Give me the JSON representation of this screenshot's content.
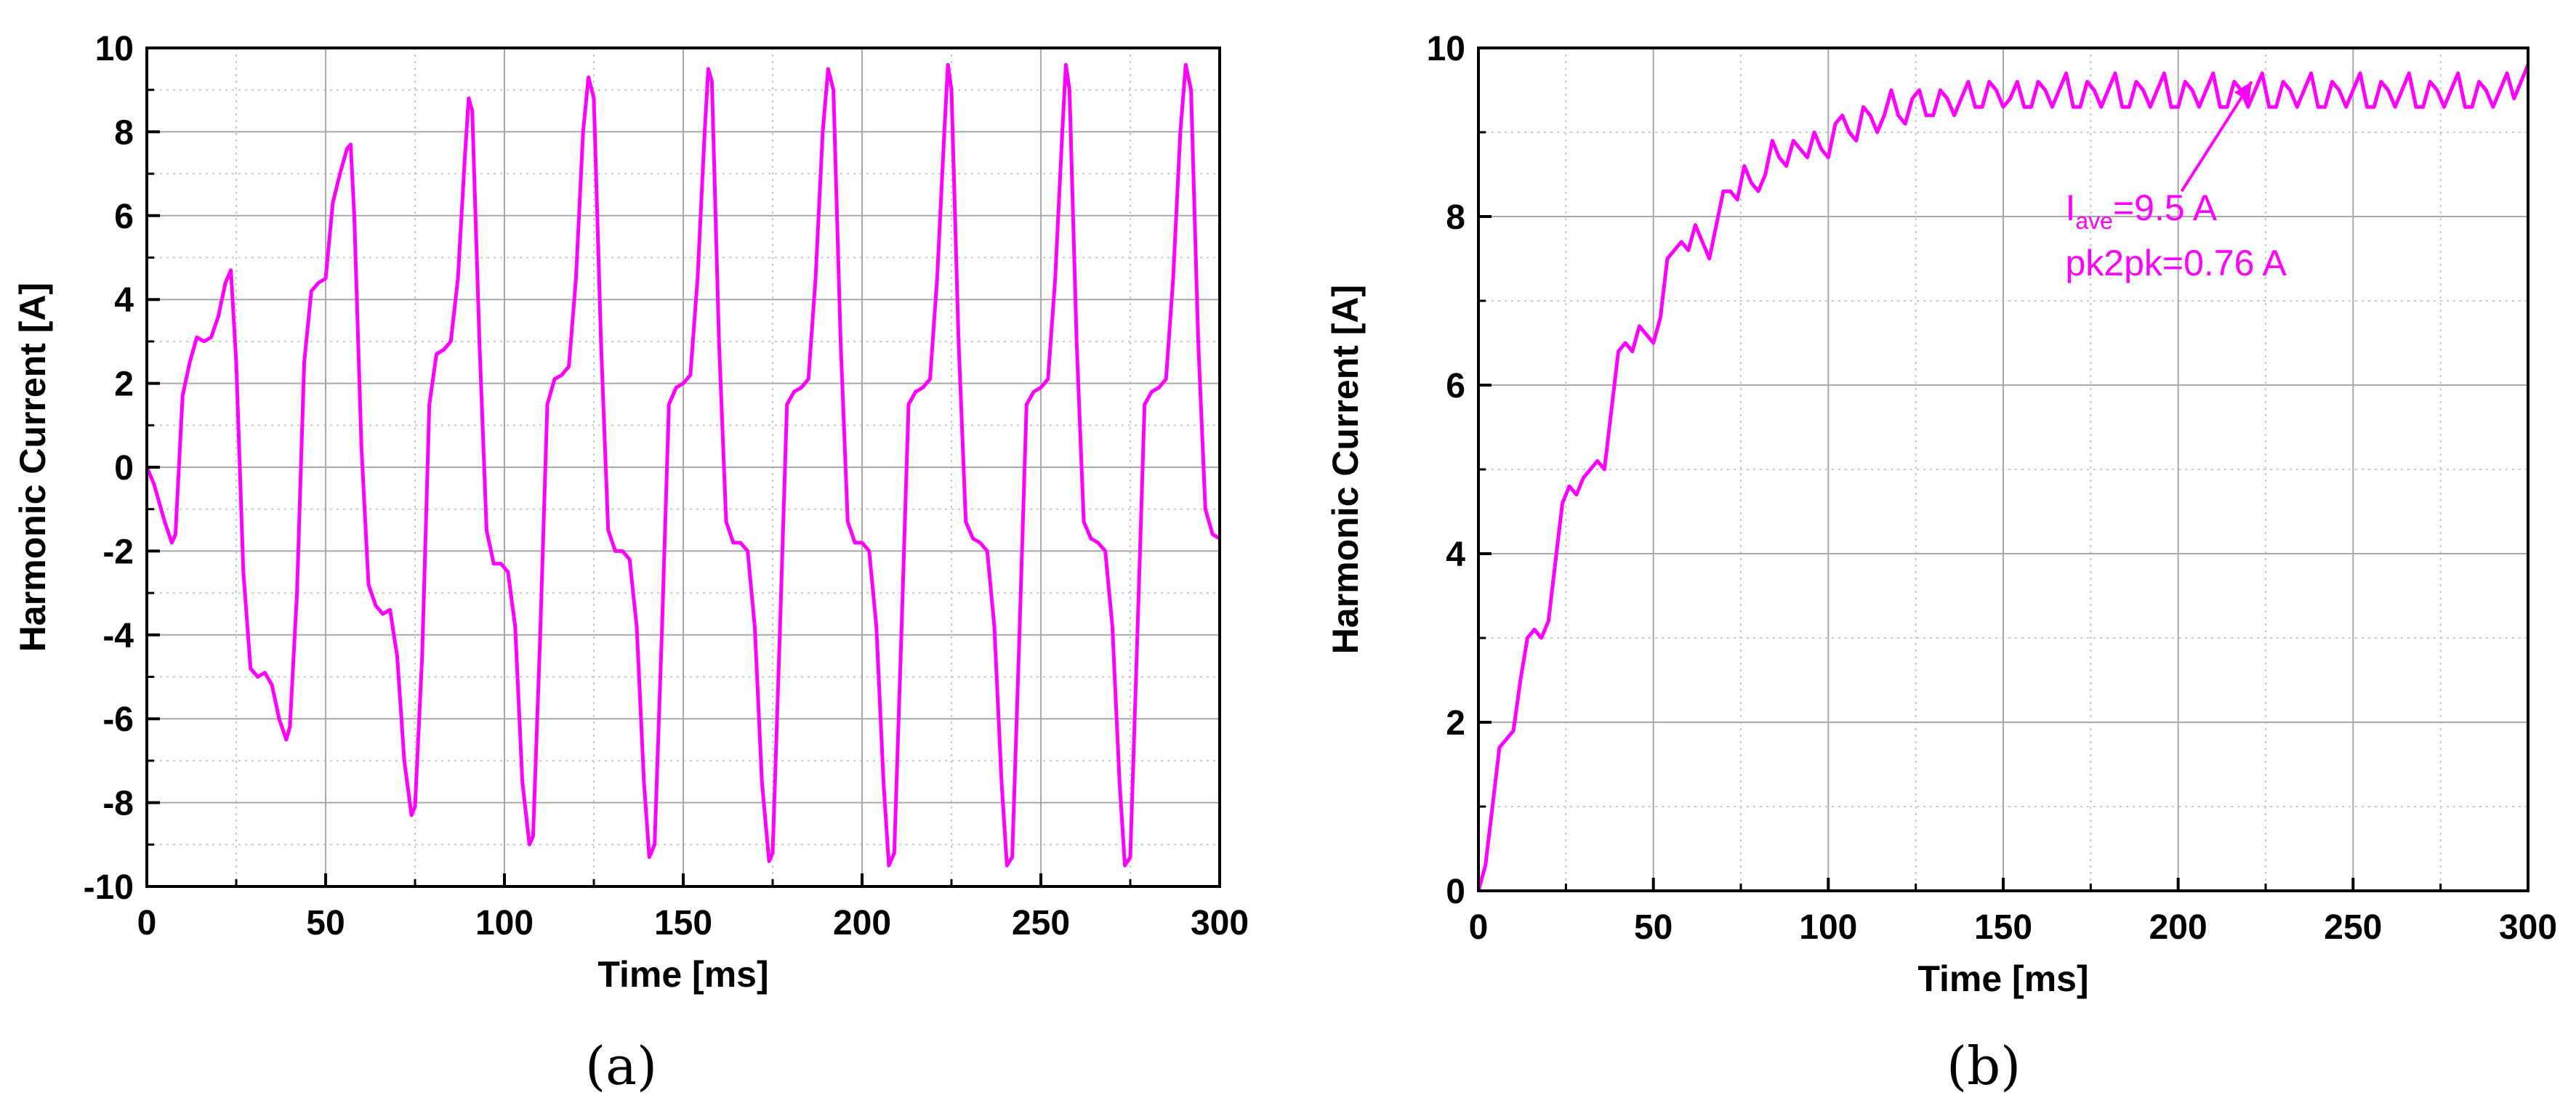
{
  "chart_data": [
    {
      "type": "line",
      "panel": "(a)",
      "xlabel": "Time [ms]",
      "ylabel": "Harmonic Current [A]",
      "xlim": [
        0,
        300
      ],
      "ylim": [
        -10,
        10
      ],
      "xticks": [
        0,
        50,
        100,
        150,
        200,
        250,
        300
      ],
      "yticks": [
        -10,
        -8,
        -6,
        -4,
        -2,
        0,
        2,
        4,
        6,
        8,
        10
      ],
      "grid": true,
      "series": [
        {
          "color": "#FF00FF",
          "x": [
            0,
            2,
            5,
            7,
            8,
            10,
            12,
            14,
            16,
            18,
            20,
            22,
            23.5,
            25,
            27,
            29,
            31,
            33,
            35,
            37,
            39,
            40,
            42,
            44,
            46,
            48,
            50,
            52,
            54,
            56,
            57,
            58,
            60,
            62,
            64,
            66,
            68,
            70,
            72,
            74,
            75,
            77,
            79,
            81,
            83,
            85,
            87,
            89,
            90,
            91,
            93,
            95,
            97,
            99,
            101,
            103,
            105,
            107,
            108,
            110,
            112,
            114,
            116,
            118,
            120,
            122,
            123.5,
            125,
            127,
            129,
            131,
            133,
            135,
            137,
            139,
            140.5,
            142,
            144,
            146,
            148,
            150,
            152,
            154,
            156,
            157,
            158,
            160,
            162,
            164,
            166,
            168,
            170,
            172,
            174,
            175,
            177,
            179,
            181,
            183,
            185,
            187,
            189,
            190.5,
            192,
            194,
            196,
            198,
            200,
            202,
            204,
            206,
            207.5,
            209,
            211,
            213,
            215,
            217,
            219,
            221,
            223,
            224,
            225,
            227,
            229,
            231,
            233,
            235,
            237,
            239,
            240.5,
            242,
            244,
            246,
            248,
            250,
            252,
            254,
            256,
            257,
            258,
            260,
            262,
            264,
            266,
            268,
            270,
            272,
            273.5,
            275,
            277,
            279,
            281,
            283,
            285,
            287,
            289,
            290.5,
            292,
            294,
            296,
            298,
            300
          ],
          "y": [
            0,
            -0.4,
            -1.3,
            -1.8,
            -1.6,
            1.7,
            2.5,
            3.1,
            3.0,
            3.1,
            3.6,
            4.4,
            4.7,
            2.5,
            -2.5,
            -4.8,
            -5.0,
            -4.9,
            -5.2,
            -6.0,
            -6.5,
            -6.2,
            -3.0,
            2.5,
            4.2,
            4.4,
            4.5,
            6.3,
            7.0,
            7.6,
            7.7,
            6.0,
            0.5,
            -2.8,
            -3.3,
            -3.5,
            -3.4,
            -4.5,
            -7.0,
            -8.3,
            -8.1,
            -4.5,
            1.5,
            2.7,
            2.8,
            3.0,
            4.5,
            7.5,
            8.8,
            8.5,
            3.0,
            -1.5,
            -2.3,
            -2.3,
            -2.5,
            -3.8,
            -7.5,
            -9.0,
            -8.8,
            -4.0,
            1.5,
            2.1,
            2.2,
            2.4,
            4.5,
            8.0,
            9.3,
            8.8,
            3.0,
            -1.5,
            -2.0,
            -2.0,
            -2.2,
            -3.8,
            -7.5,
            -9.3,
            -9.0,
            -4.0,
            1.5,
            1.9,
            2.0,
            2.2,
            4.5,
            8.0,
            9.5,
            9.2,
            3.0,
            -1.3,
            -1.8,
            -1.8,
            -2.0,
            -3.8,
            -7.5,
            -9.4,
            -9.2,
            -4.0,
            1.5,
            1.8,
            1.9,
            2.1,
            4.5,
            8.0,
            9.5,
            9.0,
            3.0,
            -1.3,
            -1.8,
            -1.8,
            -2.0,
            -3.8,
            -7.5,
            -9.5,
            -9.2,
            -4.0,
            1.5,
            1.8,
            1.9,
            2.1,
            4.5,
            8.0,
            9.6,
            9.0,
            3.0,
            -1.3,
            -1.7,
            -1.8,
            -2.0,
            -3.8,
            -7.5,
            -9.5,
            -9.3,
            -4.0,
            1.5,
            1.8,
            1.9,
            2.1,
            4.5,
            8.0,
            9.6,
            9.0,
            3.0,
            -1.3,
            -1.7,
            -1.8,
            -2.0,
            -3.8,
            -7.5,
            -9.5,
            -9.3,
            -4.0,
            1.5,
            1.8,
            1.9,
            2.1,
            4.5,
            8.0,
            9.6,
            9.0,
            3.0,
            -1.0,
            -1.6,
            -1.7
          ]
        }
      ]
    },
    {
      "type": "line",
      "panel": "(b)",
      "xlabel": "Time [ms]",
      "ylabel": "Harmonic Current [A]",
      "xlim": [
        0,
        300
      ],
      "ylim": [
        0,
        10
      ],
      "xticks": [
        0,
        50,
        100,
        150,
        200,
        250,
        300
      ],
      "yticks": [
        0,
        2,
        4,
        6,
        8,
        10
      ],
      "grid": true,
      "annotation": {
        "symbol": "I",
        "subscript": "ave",
        "line1_rest": "=9.5 A",
        "line2": "pk2pk=0.76 A",
        "arrow_from": [
          201,
          8.3
        ],
        "arrow_to": [
          221,
          9.6
        ]
      },
      "series": [
        {
          "color": "#FF00FF",
          "x": [
            0,
            2,
            4,
            6,
            8,
            10,
            12,
            14,
            16,
            18,
            20,
            22,
            24,
            26,
            28,
            30,
            32,
            34,
            36,
            38,
            40,
            42,
            44,
            46,
            48,
            50,
            52,
            54,
            56,
            58,
            60,
            62,
            64,
            66,
            68,
            70,
            72,
            74,
            76,
            78,
            80,
            82,
            84,
            86,
            88,
            90,
            92,
            94,
            96,
            98,
            100,
            102,
            104,
            106,
            108,
            110,
            112,
            114,
            116,
            118,
            120,
            122,
            124,
            126,
            128,
            130,
            132,
            134,
            136,
            138,
            140,
            142,
            144,
            146,
            148,
            150,
            152,
            154,
            156,
            158,
            160,
            162,
            164,
            166,
            168,
            170,
            172,
            174,
            176,
            178,
            180,
            182,
            184,
            186,
            188,
            190,
            192,
            194,
            196,
            198,
            200,
            202,
            204,
            206,
            208,
            210,
            212,
            214,
            216,
            218,
            220,
            222,
            224,
            226,
            228,
            230,
            232,
            234,
            236,
            238,
            240,
            242,
            244,
            246,
            248,
            250,
            252,
            254,
            256,
            258,
            260,
            262,
            264,
            266,
            268,
            270,
            272,
            274,
            276,
            278,
            280,
            282,
            284,
            286,
            288,
            290,
            292,
            294,
            296,
            298,
            300
          ],
          "y": [
            0,
            0.3,
            1.0,
            1.7,
            1.8,
            1.9,
            2.5,
            3.0,
            3.1,
            3.0,
            3.2,
            3.9,
            4.6,
            4.8,
            4.7,
            4.9,
            5.0,
            5.1,
            5.0,
            5.7,
            6.4,
            6.5,
            6.4,
            6.7,
            6.6,
            6.5,
            6.8,
            7.5,
            7.6,
            7.7,
            7.6,
            7.9,
            7.7,
            7.5,
            7.9,
            8.3,
            8.3,
            8.2,
            8.6,
            8.4,
            8.3,
            8.5,
            8.9,
            8.7,
            8.6,
            8.9,
            8.8,
            8.7,
            9.0,
            8.8,
            8.7,
            9.1,
            9.2,
            9.0,
            8.9,
            9.3,
            9.2,
            9.0,
            9.2,
            9.5,
            9.2,
            9.1,
            9.4,
            9.5,
            9.2,
            9.2,
            9.5,
            9.4,
            9.2,
            9.4,
            9.6,
            9.3,
            9.3,
            9.6,
            9.5,
            9.3,
            9.4,
            9.6,
            9.3,
            9.3,
            9.6,
            9.5,
            9.3,
            9.5,
            9.7,
            9.3,
            9.3,
            9.6,
            9.5,
            9.3,
            9.5,
            9.7,
            9.3,
            9.3,
            9.6,
            9.5,
            9.3,
            9.5,
            9.7,
            9.3,
            9.3,
            9.6,
            9.5,
            9.3,
            9.5,
            9.7,
            9.3,
            9.3,
            9.6,
            9.5,
            9.3,
            9.5,
            9.7,
            9.3,
            9.3,
            9.6,
            9.5,
            9.3,
            9.5,
            9.7,
            9.3,
            9.3,
            9.6,
            9.5,
            9.3,
            9.5,
            9.7,
            9.3,
            9.3,
            9.6,
            9.5,
            9.3,
            9.5,
            9.7,
            9.3,
            9.3,
            9.6,
            9.5,
            9.3,
            9.5,
            9.7,
            9.3,
            9.3,
            9.6,
            9.5,
            9.3,
            9.5,
            9.7,
            9.4,
            9.6,
            9.8
          ]
        }
      ]
    }
  ]
}
